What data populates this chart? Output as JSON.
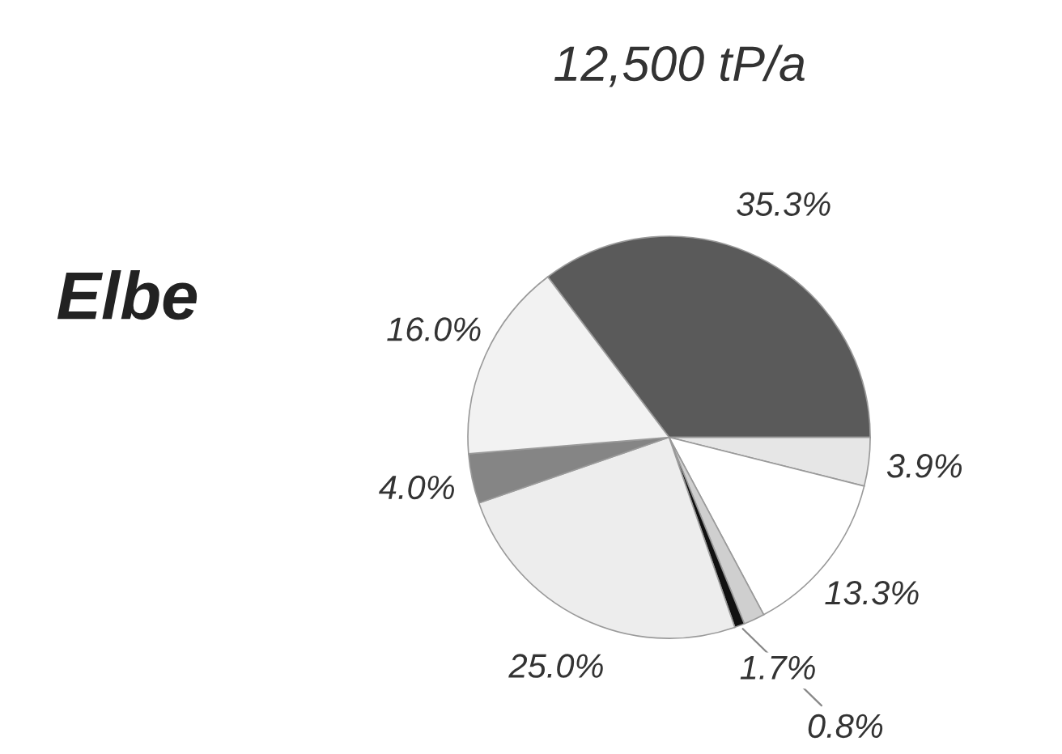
{
  "chart_data": {
    "type": "pie",
    "title": "12,500 tP/a",
    "subtitle": "Elbe",
    "categories": [
      null,
      null,
      null,
      null,
      null,
      null,
      null,
      null
    ],
    "values": [
      35.3,
      3.9,
      13.3,
      1.7,
      0.8,
      25.0,
      4.0,
      16.0
    ],
    "colors": [
      "#5a5a5a",
      "#e6e6e6",
      "#ffffff",
      "#cfcfcf",
      "#111111",
      "#ededed",
      "#858585",
      "#f2f2f2"
    ],
    "value_labels": [
      "35.3%",
      "3.9%",
      "13.3%",
      "1.7%",
      "0.8%",
      "25.0%",
      "4.0%",
      "16.0%"
    ]
  }
}
